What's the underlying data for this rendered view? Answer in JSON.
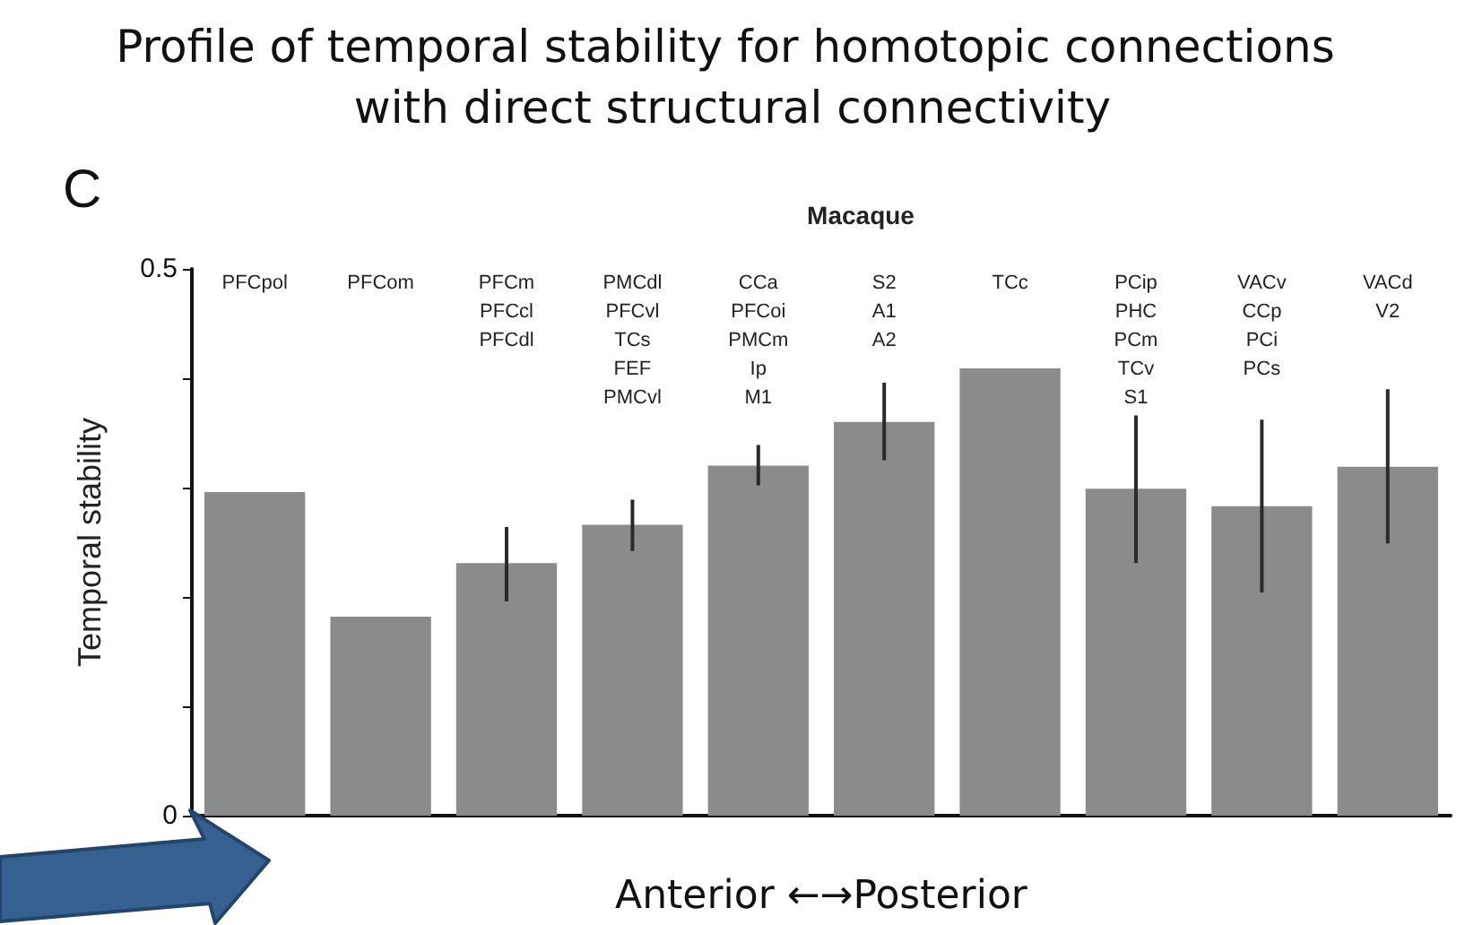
{
  "chart_data": {
    "type": "bar",
    "title": "Profile of temporal stability for homotopic connections with direct structural connectivity",
    "subtitle": "Macaque",
    "ylabel": "Temporal stability",
    "xlabel": "Anterior ←→Posterior",
    "annotations": [
      "C"
    ],
    "categories": [
      "PFCpol",
      "PFCom",
      "PFCm\nPFCcl\nPFCdl",
      "PMCdl\nPFCvl\nTCs\nFEF\nPMCvl",
      "CCa\nPFCoi\nPMCm\nIp\nM1",
      "S2\nA1\nA2",
      "TCc",
      "PCip\nPHC\nPCm\nTCv\nS1",
      "VACv\nCCp\nPCi\nPCs",
      "VACd\nV2"
    ],
    "values": [
      0.296,
      0.182,
      0.231,
      0.266,
      0.32,
      0.36,
      0.409,
      0.299,
      0.283,
      0.319
    ],
    "errors": [
      null,
      null,
      [
        0.196,
        0.264
      ],
      [
        0.242,
        0.289
      ],
      [
        0.302,
        0.339
      ],
      [
        0.325,
        0.396
      ],
      null,
      [
        0.231,
        0.366
      ],
      [
        0.204,
        0.362
      ],
      [
        0.249,
        0.39
      ]
    ],
    "color": "#8a8b8d",
    "ylim": [
      0,
      0.5
    ],
    "yticks": [
      0,
      {
        "value": 0.1,
        "label": null
      },
      {
        "value": 0.2,
        "label": null
      },
      {
        "value": 0.3,
        "label": null
      },
      {
        "value": 0.4,
        "label": null
      },
      0.5
    ],
    "grid": false
  }
}
